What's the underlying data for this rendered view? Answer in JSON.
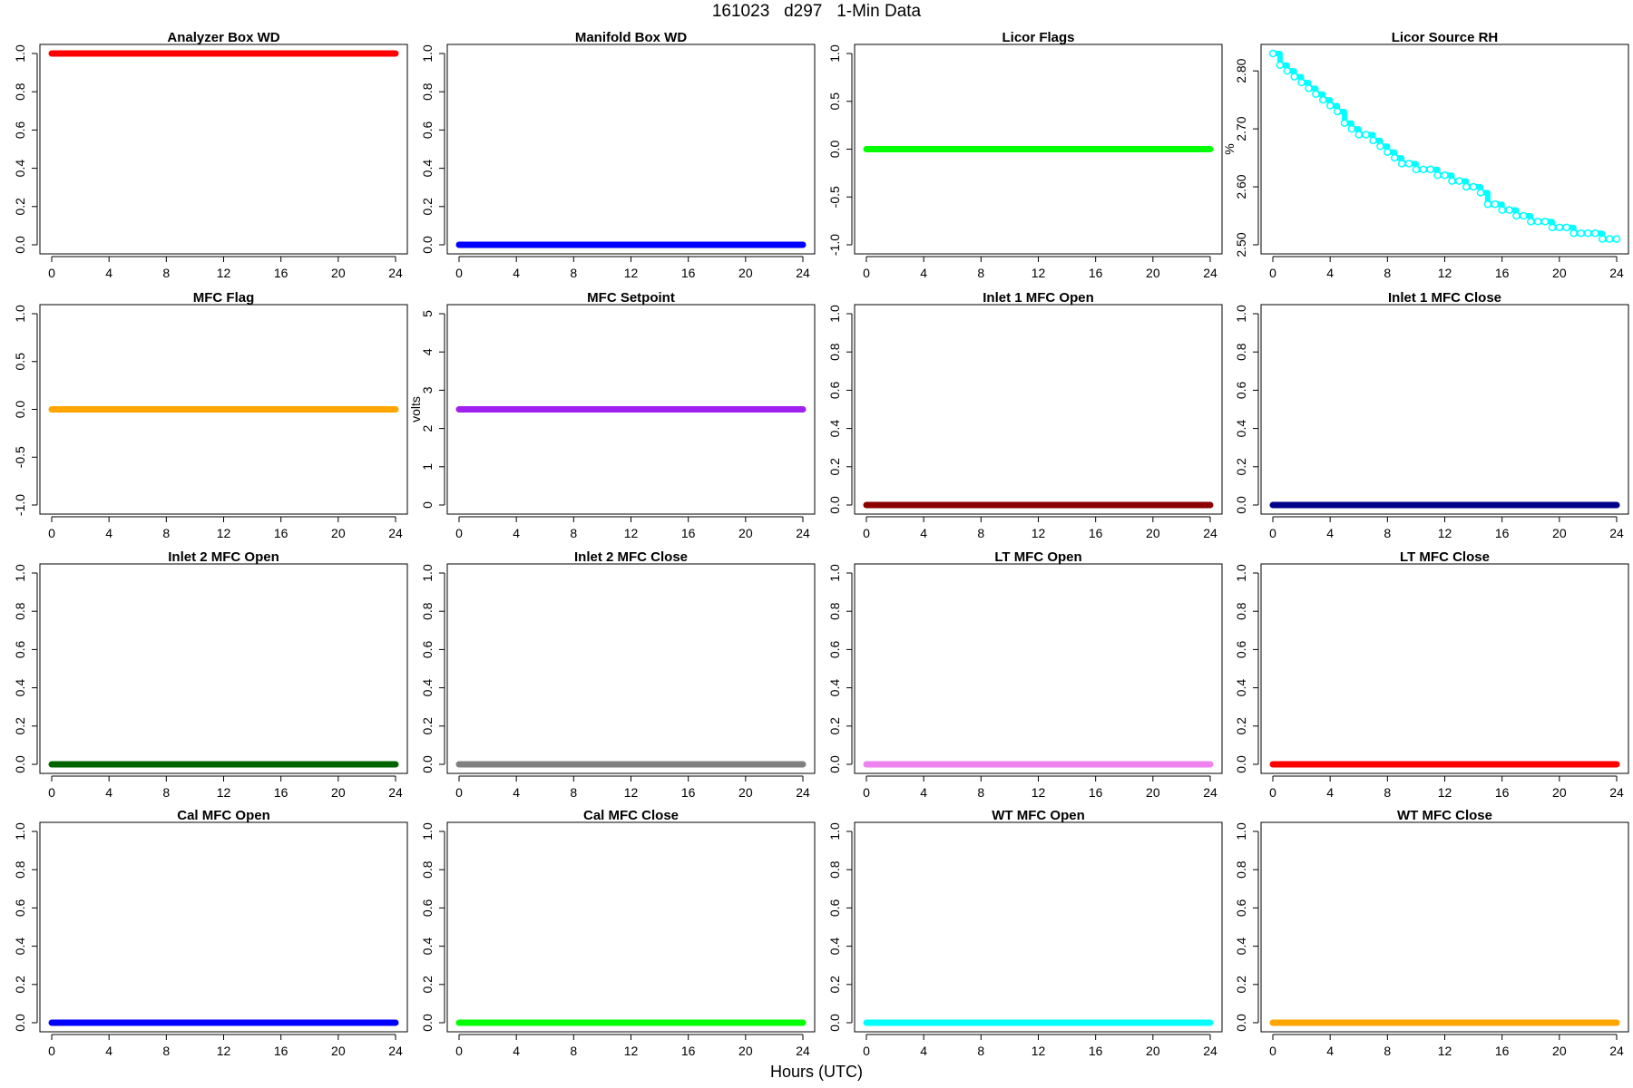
{
  "page": {
    "title": "161023   d297   1-Min Data",
    "xlabel": "Hours (UTC)"
  },
  "chart_data": [
    {
      "type": "scatter",
      "title": "Analyzer Box WD",
      "ylabel": "",
      "xlim": [
        0,
        24
      ],
      "ylim": [
        0,
        1
      ],
      "xticks": [
        0,
        4,
        8,
        12,
        16,
        20,
        24
      ],
      "yticks": [
        "0.0",
        "0.2",
        "0.4",
        "0.6",
        "0.8",
        "1.0"
      ],
      "color": "#ff0000",
      "series": [
        {
          "x": [
            0,
            24
          ],
          "y": [
            1,
            1
          ]
        }
      ]
    },
    {
      "type": "scatter",
      "title": "Manifold Box WD",
      "ylabel": "",
      "xlim": [
        0,
        24
      ],
      "ylim": [
        0,
        1
      ],
      "xticks": [
        0,
        4,
        8,
        12,
        16,
        20,
        24
      ],
      "yticks": [
        "0.0",
        "0.2",
        "0.4",
        "0.6",
        "0.8",
        "1.0"
      ],
      "color": "#0000ff",
      "series": [
        {
          "x": [
            0,
            24
          ],
          "y": [
            0,
            0
          ]
        }
      ]
    },
    {
      "type": "scatter",
      "title": "Licor Flags",
      "ylabel": "",
      "xlim": [
        0,
        24
      ],
      "ylim": [
        -1,
        1
      ],
      "xticks": [
        0,
        4,
        8,
        12,
        16,
        20,
        24
      ],
      "yticks": [
        "-1.0",
        "-0.5",
        "0.0",
        "0.5",
        "1.0"
      ],
      "color": "#00ff00",
      "series": [
        {
          "x": [
            0,
            24
          ],
          "y": [
            0,
            0
          ]
        }
      ]
    },
    {
      "type": "scatter",
      "title": "Licor Source RH",
      "ylabel": "%",
      "xlim": [
        0,
        24
      ],
      "ylim": [
        2.5,
        2.83
      ],
      "xticks": [
        0,
        4,
        8,
        12,
        16,
        20,
        24
      ],
      "yticks": [
        "2.50",
        "2.60",
        "2.70",
        "2.80"
      ],
      "color": "#00ffff",
      "series": [
        {
          "x": [
            0,
            0.5,
            1,
            1.5,
            2,
            2.5,
            3,
            3.5,
            4,
            4.5,
            5,
            5.5,
            6,
            6.5,
            7,
            7.5,
            8,
            8.5,
            9,
            9.5,
            10,
            10.5,
            11,
            11.5,
            12,
            12.5,
            13,
            13.5,
            14,
            14.5,
            15,
            15.5,
            16,
            16.5,
            17,
            17.5,
            18,
            18.5,
            19,
            19.5,
            20,
            20.5,
            21,
            21.5,
            22,
            22.5,
            23,
            23.5,
            24
          ],
          "y": [
            2.83,
            2.81,
            2.8,
            2.79,
            2.78,
            2.77,
            2.76,
            2.75,
            2.74,
            2.73,
            2.71,
            2.7,
            2.69,
            2.69,
            2.68,
            2.67,
            2.66,
            2.65,
            2.64,
            2.64,
            2.63,
            2.63,
            2.63,
            2.62,
            2.62,
            2.61,
            2.61,
            2.6,
            2.6,
            2.59,
            2.57,
            2.57,
            2.56,
            2.56,
            2.55,
            2.55,
            2.54,
            2.54,
            2.54,
            2.53,
            2.53,
            2.53,
            2.52,
            2.52,
            2.52,
            2.52,
            2.51,
            2.51,
            2.51
          ]
        }
      ]
    },
    {
      "type": "scatter",
      "title": "MFC Flag",
      "ylabel": "",
      "xlim": [
        0,
        24
      ],
      "ylim": [
        -1,
        1
      ],
      "xticks": [
        0,
        4,
        8,
        12,
        16,
        20,
        24
      ],
      "yticks": [
        "-1.0",
        "-0.5",
        "0.0",
        "0.5",
        "1.0"
      ],
      "color": "#ffa500",
      "series": [
        {
          "x": [
            0,
            24
          ],
          "y": [
            0,
            0
          ]
        }
      ]
    },
    {
      "type": "scatter",
      "title": "MFC Setpoint",
      "ylabel": "volts",
      "xlim": [
        0,
        24
      ],
      "ylim": [
        0,
        5
      ],
      "xticks": [
        0,
        4,
        8,
        12,
        16,
        20,
        24
      ],
      "yticks": [
        "0",
        "1",
        "2",
        "3",
        "4",
        "5"
      ],
      "color": "#a020f0",
      "series": [
        {
          "x": [
            0,
            24
          ],
          "y": [
            2.5,
            2.5
          ]
        }
      ]
    },
    {
      "type": "scatter",
      "title": "Inlet 1 MFC Open",
      "ylabel": "",
      "xlim": [
        0,
        24
      ],
      "ylim": [
        0,
        1
      ],
      "xticks": [
        0,
        4,
        8,
        12,
        16,
        20,
        24
      ],
      "yticks": [
        "0.0",
        "0.2",
        "0.4",
        "0.6",
        "0.8",
        "1.0"
      ],
      "color": "#8b0000",
      "series": [
        {
          "x": [
            0,
            24
          ],
          "y": [
            0,
            0
          ]
        }
      ]
    },
    {
      "type": "scatter",
      "title": "Inlet 1 MFC Close",
      "ylabel": "",
      "xlim": [
        0,
        24
      ],
      "ylim": [
        0,
        1
      ],
      "xticks": [
        0,
        4,
        8,
        12,
        16,
        20,
        24
      ],
      "yticks": [
        "0.0",
        "0.2",
        "0.4",
        "0.6",
        "0.8",
        "1.0"
      ],
      "color": "#00008b",
      "series": [
        {
          "x": [
            0,
            24
          ],
          "y": [
            0,
            0
          ]
        }
      ]
    },
    {
      "type": "scatter",
      "title": "Inlet 2 MFC Open",
      "ylabel": "",
      "xlim": [
        0,
        24
      ],
      "ylim": [
        0,
        1
      ],
      "xticks": [
        0,
        4,
        8,
        12,
        16,
        20,
        24
      ],
      "yticks": [
        "0.0",
        "0.2",
        "0.4",
        "0.6",
        "0.8",
        "1.0"
      ],
      "color": "#006400",
      "series": [
        {
          "x": [
            0,
            24
          ],
          "y": [
            0,
            0
          ]
        }
      ]
    },
    {
      "type": "scatter",
      "title": "Inlet 2 MFC Close",
      "ylabel": "",
      "xlim": [
        0,
        24
      ],
      "ylim": [
        0,
        1
      ],
      "xticks": [
        0,
        4,
        8,
        12,
        16,
        20,
        24
      ],
      "yticks": [
        "0.0",
        "0.2",
        "0.4",
        "0.6",
        "0.8",
        "1.0"
      ],
      "color": "#808080",
      "series": [
        {
          "x": [
            0,
            24
          ],
          "y": [
            0,
            0
          ]
        }
      ]
    },
    {
      "type": "scatter",
      "title": "LT MFC Open",
      "ylabel": "",
      "xlim": [
        0,
        24
      ],
      "ylim": [
        0,
        1
      ],
      "xticks": [
        0,
        4,
        8,
        12,
        16,
        20,
        24
      ],
      "yticks": [
        "0.0",
        "0.2",
        "0.4",
        "0.6",
        "0.8",
        "1.0"
      ],
      "color": "#ee82ee",
      "series": [
        {
          "x": [
            0,
            24
          ],
          "y": [
            0,
            0
          ]
        }
      ]
    },
    {
      "type": "scatter",
      "title": "LT MFC Close",
      "ylabel": "",
      "xlim": [
        0,
        24
      ],
      "ylim": [
        0,
        1
      ],
      "xticks": [
        0,
        4,
        8,
        12,
        16,
        20,
        24
      ],
      "yticks": [
        "0.0",
        "0.2",
        "0.4",
        "0.6",
        "0.8",
        "1.0"
      ],
      "color": "#ff0000",
      "series": [
        {
          "x": [
            0,
            24
          ],
          "y": [
            0,
            0
          ]
        }
      ]
    },
    {
      "type": "scatter",
      "title": "Cal MFC Open",
      "ylabel": "",
      "xlim": [
        0,
        24
      ],
      "ylim": [
        0,
        1
      ],
      "xticks": [
        0,
        4,
        8,
        12,
        16,
        20,
        24
      ],
      "yticks": [
        "0.0",
        "0.2",
        "0.4",
        "0.6",
        "0.8",
        "1.0"
      ],
      "color": "#0000ff",
      "series": [
        {
          "x": [
            0,
            24
          ],
          "y": [
            0,
            0
          ]
        }
      ]
    },
    {
      "type": "scatter",
      "title": "Cal MFC Close",
      "ylabel": "",
      "xlim": [
        0,
        24
      ],
      "ylim": [
        0,
        1
      ],
      "xticks": [
        0,
        4,
        8,
        12,
        16,
        20,
        24
      ],
      "yticks": [
        "0.0",
        "0.2",
        "0.4",
        "0.6",
        "0.8",
        "1.0"
      ],
      "color": "#00ff00",
      "series": [
        {
          "x": [
            0,
            24
          ],
          "y": [
            0,
            0
          ]
        }
      ]
    },
    {
      "type": "scatter",
      "title": "WT MFC Open",
      "ylabel": "",
      "xlim": [
        0,
        24
      ],
      "ylim": [
        0,
        1
      ],
      "xticks": [
        0,
        4,
        8,
        12,
        16,
        20,
        24
      ],
      "yticks": [
        "0.0",
        "0.2",
        "0.4",
        "0.6",
        "0.8",
        "1.0"
      ],
      "color": "#00ffff",
      "series": [
        {
          "x": [
            0,
            24
          ],
          "y": [
            0,
            0
          ]
        }
      ]
    },
    {
      "type": "scatter",
      "title": "WT MFC Close",
      "ylabel": "",
      "xlim": [
        0,
        24
      ],
      "ylim": [
        0,
        1
      ],
      "xticks": [
        0,
        4,
        8,
        12,
        16,
        20,
        24
      ],
      "yticks": [
        "0.0",
        "0.2",
        "0.4",
        "0.6",
        "0.8",
        "1.0"
      ],
      "color": "#ffa500",
      "series": [
        {
          "x": [
            0,
            24
          ],
          "y": [
            0,
            0
          ]
        }
      ]
    }
  ]
}
